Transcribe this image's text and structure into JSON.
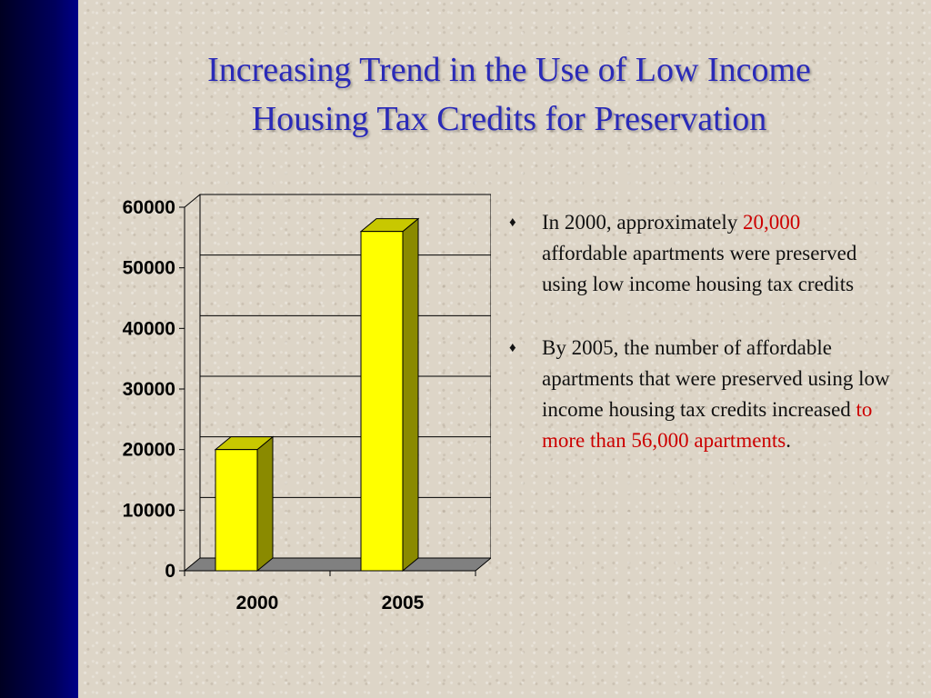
{
  "slide": {
    "title_line1": "Increasing Trend in the Use of Low Income",
    "title_line2": "Housing Tax Credits for Preservation"
  },
  "bullets": [
    {
      "marker": "♦",
      "before": "In 2000, approximately ",
      "highlight": "20,000",
      "after": " affordable apartments were preserved using low income housing tax credits"
    },
    {
      "marker": "♦",
      "before": "By 2005, the number of affordable apartments that were preserved using low income housing tax credits increased ",
      "highlight": "to more than 56,000 apartments",
      "after": "."
    }
  ],
  "colors": {
    "sidebar": "#00005c",
    "title": "#2a2ab8",
    "highlight": "#cc0000",
    "bar_front": "#ffff00",
    "bar_side": "#8a8a00",
    "floor": "#808080"
  },
  "chart_data": {
    "type": "bar",
    "style": "3d",
    "categories": [
      "2000",
      "2005"
    ],
    "values": [
      20000,
      56000
    ],
    "ylim": [
      0,
      60000
    ],
    "yticks": [
      "0",
      "10000",
      "20000",
      "30000",
      "40000",
      "50000",
      "60000"
    ],
    "grid": true,
    "title": "",
    "xlabel": "",
    "ylabel": ""
  }
}
